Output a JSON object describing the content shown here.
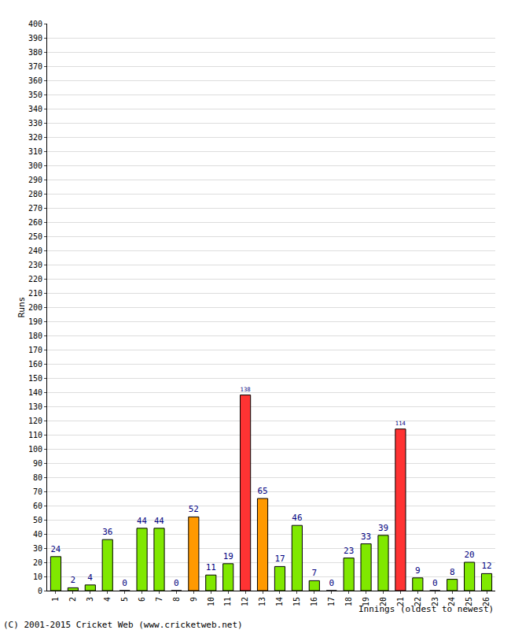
{
  "chart_data": {
    "type": "bar",
    "y_label": "Runs",
    "x_label": "Innings (oldest to newest)",
    "annotations": [
      "(C) 2001-2015 Cricket Web (www.cricketweb.net)"
    ],
    "categories": [
      "1",
      "2",
      "3",
      "4",
      "5",
      "6",
      "7",
      "8",
      "9",
      "10",
      "11",
      "12",
      "13",
      "14",
      "15",
      "16",
      "17",
      "18",
      "19",
      "20",
      "21",
      "22",
      "23",
      "24",
      "25",
      "26"
    ],
    "values": [
      24,
      2,
      4,
      36,
      0,
      44,
      44,
      0,
      52,
      11,
      19,
      138,
      65,
      17,
      46,
      7,
      0,
      23,
      33,
      39,
      114,
      9,
      0,
      8,
      20,
      12
    ],
    "colors": [
      "#80e800",
      "#80e800",
      "#80e800",
      "#80e800",
      "#80e800",
      "#80e800",
      "#80e800",
      "#80e800",
      "#ff9900",
      "#80e800",
      "#80e800",
      "#ff3333",
      "#ff9900",
      "#80e800",
      "#80e800",
      "#80e800",
      "#80e800",
      "#80e800",
      "#80e800",
      "#80e800",
      "#ff3333",
      "#80e800",
      "#80e800",
      "#80e800",
      "#80e800",
      "#80e800"
    ],
    "ylim": [
      0,
      400
    ],
    "yticks": [
      0,
      10,
      20,
      30,
      40,
      50,
      60,
      70,
      80,
      90,
      100,
      110,
      120,
      130,
      140,
      150,
      160,
      170,
      180,
      190,
      200,
      210,
      220,
      230,
      240,
      250,
      260,
      270,
      280,
      290,
      300,
      310,
      320,
      330,
      340,
      350,
      360,
      370,
      380,
      390,
      400
    ],
    "grid": true,
    "data_labels": true
  }
}
